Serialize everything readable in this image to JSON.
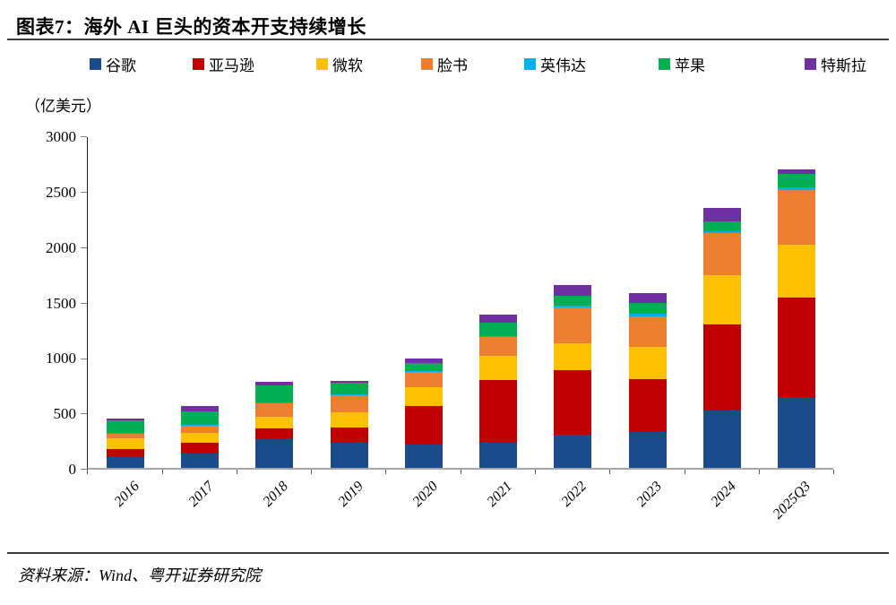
{
  "header": {
    "title": "图表7：海外 AI 巨头的资本开支持续增长"
  },
  "footer": {
    "source": "资料来源：Wind、粤开证券研究院"
  },
  "chart_data": {
    "type": "bar",
    "stacked": true,
    "title": "海外 AI 巨头的资本开支持续增长",
    "unit_label": "（亿美元）",
    "xlabel": "",
    "ylabel": "（亿美元）",
    "ylim": [
      0,
      3000
    ],
    "ytick_step": 500,
    "ytick_labels": [
      "0",
      "500",
      "1000",
      "1500",
      "2000",
      "2500",
      "3000"
    ],
    "grid": false,
    "legend_position": "top",
    "categories": [
      "2016",
      "2017",
      "2018",
      "2019",
      "2020",
      "2021",
      "2022",
      "2023",
      "2024",
      "2025Q3"
    ],
    "series": [
      {
        "name": "谷歌",
        "color": "#1b4b8b",
        "values": [
          100,
          130,
          255,
          228,
          210,
          230,
          300,
          320,
          515,
          640
        ]
      },
      {
        "name": "亚马逊",
        "color": "#c00000",
        "values": [
          72,
          98,
          103,
          136,
          350,
          560,
          585,
          480,
          775,
          895
        ]
      },
      {
        "name": "微软",
        "color": "#ffc000",
        "values": [
          95,
          86,
          100,
          135,
          165,
          220,
          240,
          290,
          445,
          480
        ]
      },
      {
        "name": "脸书",
        "color": "#ed7d31",
        "values": [
          46,
          70,
          130,
          160,
          140,
          170,
          325,
          280,
          380,
          490
        ]
      },
      {
        "name": "英伟达",
        "color": "#00b0f0",
        "values": [
          3,
          4,
          5,
          5,
          8,
          10,
          15,
          25,
          20,
          30
        ]
      },
      {
        "name": "苹果",
        "color": "#00b050",
        "values": [
          112,
          122,
          150,
          102,
          70,
          120,
          90,
          95,
          90,
          115
        ]
      },
      {
        "name": "特斯拉",
        "color": "#7030a0",
        "values": [
          16,
          45,
          33,
          15,
          45,
          70,
          95,
          90,
          120,
          40
        ]
      }
    ],
    "totals": [
      444,
      555,
      776,
      781,
      988,
      1380,
      1650,
      1580,
      2345,
      2690
    ]
  }
}
